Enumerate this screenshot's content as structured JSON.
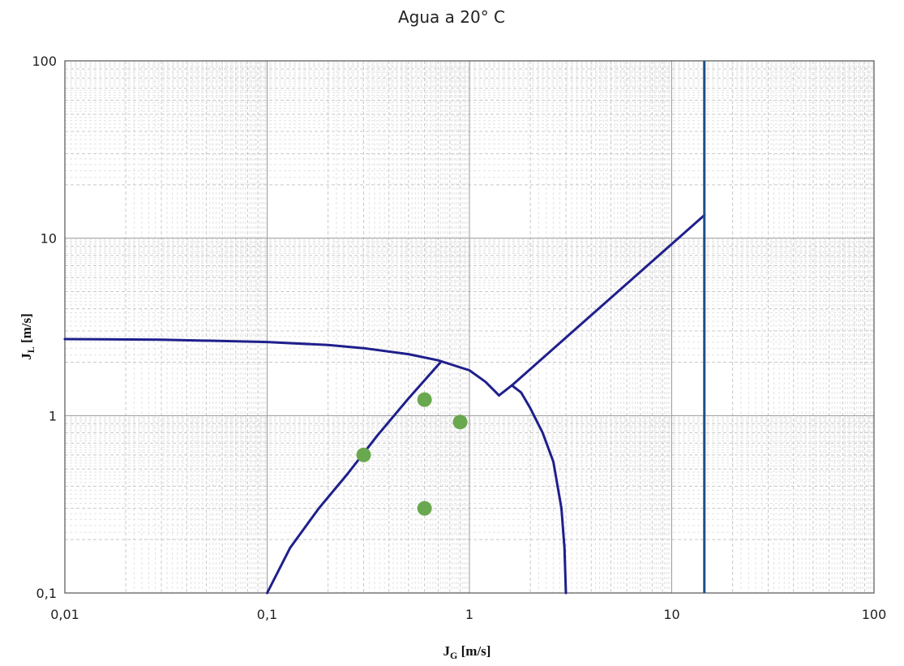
{
  "chart_data": {
    "type": "line",
    "title": "Agua  a 20° C",
    "xlabel": {
      "main": "J",
      "sub": "G",
      "unit": " [m/s]"
    },
    "ylabel": {
      "main": "J",
      "sub": "L",
      "unit": " [m/s]"
    },
    "x_scale": "log",
    "y_scale": "log",
    "xlim": [
      0.01,
      100
    ],
    "ylim": [
      0.1,
      100
    ],
    "x_ticks": [
      {
        "value": 0.01,
        "label": "0,01"
      },
      {
        "value": 0.1,
        "label": "0,1"
      },
      {
        "value": 1,
        "label": "1"
      },
      {
        "value": 10,
        "label": "10"
      },
      {
        "value": 100,
        "label": "100"
      }
    ],
    "y_ticks": [
      {
        "value": 0.1,
        "label": "0,1"
      },
      {
        "value": 1,
        "label": "1"
      },
      {
        "value": 10,
        "label": "10"
      },
      {
        "value": 100,
        "label": "100"
      }
    ],
    "grid": true,
    "line_color": "#1f1f8c",
    "vertical_line_color": "#1f4e8c",
    "marker_color": "#6aa84f",
    "series": [
      {
        "points": [
          [
            0.01,
            2.7
          ],
          [
            0.03,
            2.68
          ],
          [
            0.1,
            2.6
          ],
          [
            0.2,
            2.5
          ],
          [
            0.3,
            2.4
          ],
          [
            0.5,
            2.22
          ],
          [
            0.7,
            2.05
          ],
          [
            1.0,
            1.8
          ],
          [
            1.2,
            1.55
          ],
          [
            1.4,
            1.3
          ]
        ]
      },
      {
        "points": [
          [
            0.1,
            0.1
          ],
          [
            0.13,
            0.18
          ],
          [
            0.18,
            0.3
          ],
          [
            0.25,
            0.47
          ],
          [
            0.35,
            0.77
          ],
          [
            0.5,
            1.25
          ],
          [
            0.72,
            2.0
          ]
        ]
      },
      {
        "points": [
          [
            1.62,
            1.48
          ],
          [
            1.8,
            1.35
          ],
          [
            2.0,
            1.1
          ],
          [
            2.3,
            0.8
          ],
          [
            2.6,
            0.55
          ],
          [
            2.85,
            0.3
          ],
          [
            2.95,
            0.18
          ],
          [
            3.0,
            0.1
          ]
        ]
      },
      {
        "points": [
          [
            1.4,
            1.3
          ],
          [
            1.62,
            1.48
          ]
        ]
      },
      {
        "points": [
          [
            1.62,
            1.48
          ],
          [
            14.5,
            13.5
          ]
        ]
      }
    ],
    "vertical_lines": [
      14.5
    ],
    "scatter": [
      {
        "x": 0.6,
        "y": 1.23
      },
      {
        "x": 0.9,
        "y": 0.92
      },
      {
        "x": 0.3,
        "y": 0.6
      },
      {
        "x": 0.6,
        "y": 0.3
      }
    ]
  }
}
